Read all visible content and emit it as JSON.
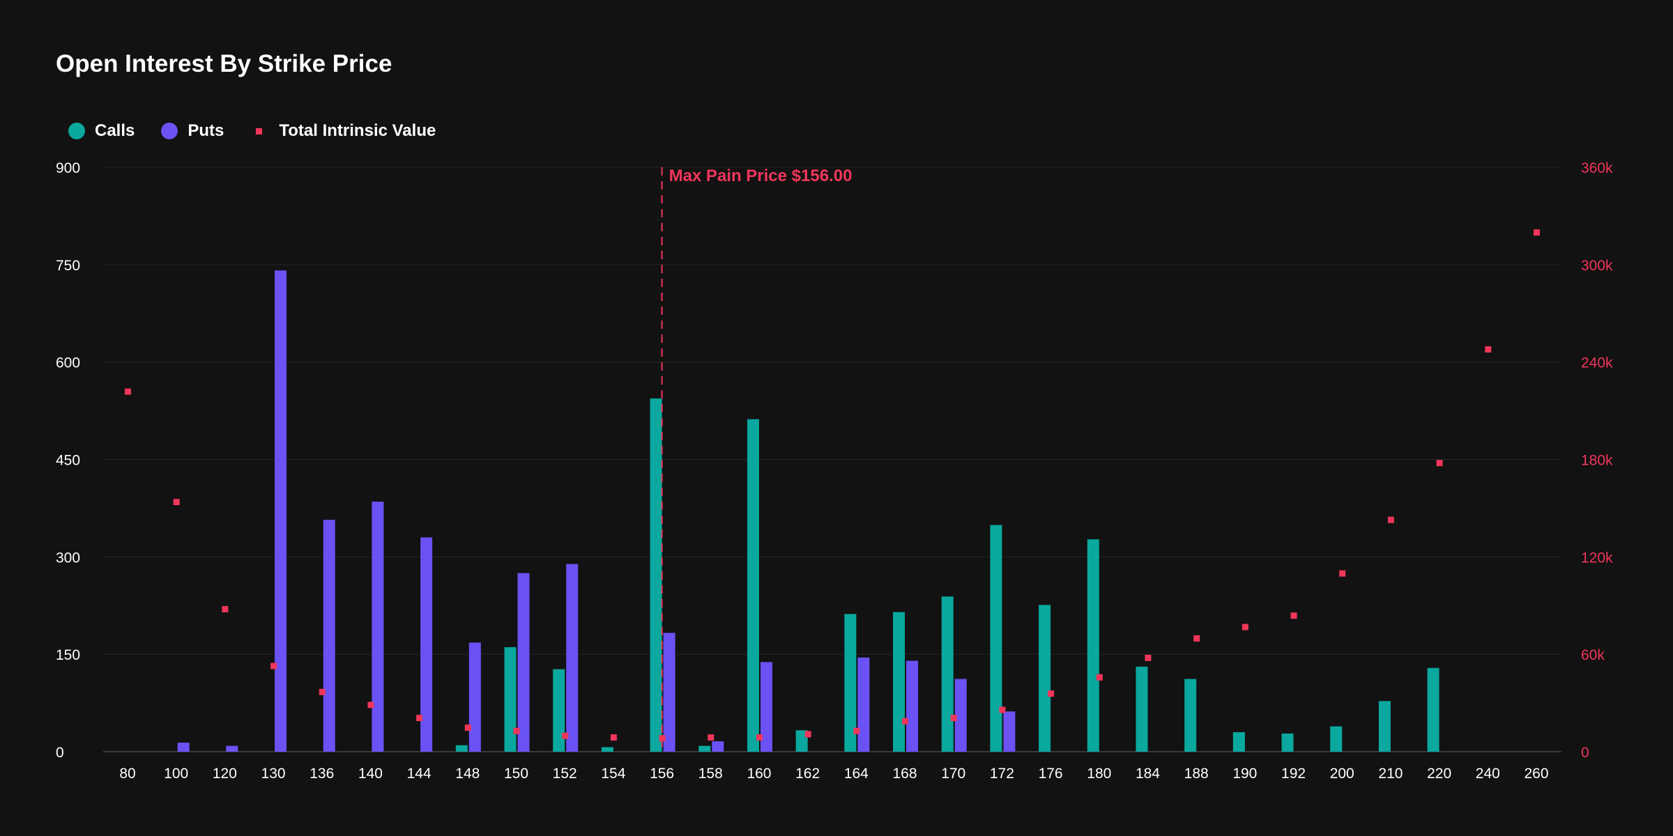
{
  "chart_data": {
    "type": "bar",
    "title": "Open Interest By Strike Price",
    "categories": [
      "80",
      "100",
      "120",
      "130",
      "136",
      "140",
      "144",
      "148",
      "150",
      "152",
      "154",
      "156",
      "158",
      "160",
      "162",
      "164",
      "168",
      "170",
      "172",
      "176",
      "180",
      "184",
      "188",
      "190",
      "192",
      "200",
      "210",
      "220",
      "240",
      "260"
    ],
    "series": [
      {
        "name": "Calls",
        "type": "bar",
        "color": "#0aa89e",
        "values": [
          0,
          0,
          0,
          0,
          0,
          0,
          0,
          10,
          161,
          127,
          7,
          544,
          9,
          512,
          33,
          212,
          215,
          239,
          349,
          226,
          327,
          131,
          112,
          30,
          28,
          39,
          78,
          129,
          0,
          0
        ]
      },
      {
        "name": "Puts",
        "type": "bar",
        "color": "#6a52f5",
        "values": [
          0,
          14,
          9,
          741,
          357,
          385,
          330,
          168,
          275,
          289,
          0,
          183,
          16,
          138,
          0,
          145,
          140,
          112,
          62,
          0,
          0,
          0,
          0,
          0,
          0,
          0,
          0,
          0,
          0,
          0
        ]
      },
      {
        "name": "Total Intrinsic Value",
        "type": "scatter",
        "axis": "right",
        "color": "#f0365a",
        "values": [
          222000,
          154000,
          88000,
          53000,
          37000,
          29000,
          21000,
          15000,
          13000,
          10000,
          9000,
          8500,
          9000,
          9000,
          11000,
          13000,
          19000,
          21000,
          26000,
          36000,
          46000,
          58000,
          70000,
          77000,
          84000,
          110000,
          143000,
          178000,
          248000,
          320000
        ]
      }
    ],
    "y_left": {
      "min": 0,
      "max": 900,
      "ticks": [
        0,
        150,
        300,
        450,
        600,
        750,
        900
      ],
      "tick_labels": [
        "0",
        "150",
        "300",
        "450",
        "600",
        "750",
        "900"
      ]
    },
    "y_right": {
      "min": 0,
      "max": 360000,
      "ticks": [
        0,
        60000,
        120000,
        180000,
        240000,
        300000,
        360000
      ],
      "tick_labels": [
        "0",
        "60k",
        "120k",
        "180k",
        "240k",
        "300k",
        "360k"
      ],
      "color": "#f0365a"
    },
    "grid": true,
    "legend_position": "top-left",
    "annotation": {
      "category": "156",
      "text": "Max Pain Price $156.00",
      "color": "#f0365a"
    }
  }
}
